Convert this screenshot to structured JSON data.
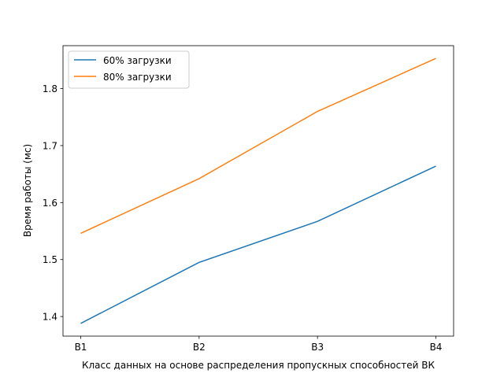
{
  "chart_data": {
    "type": "line",
    "categories": [
      "B1",
      "B2",
      "B3",
      "B4"
    ],
    "series": [
      {
        "name": "60% загрузки",
        "values": [
          1.388,
          1.495,
          1.567,
          1.664
        ],
        "color": "#1f77b4"
      },
      {
        "name": "80% загрузки",
        "values": [
          1.546,
          1.642,
          1.76,
          1.853
        ],
        "color": "#ff7f0e"
      }
    ],
    "title": "",
    "xlabel": "Класс данных на основе распределения пропускных способностей ВК",
    "ylabel": "Время работы (мс)",
    "ylim": [
      1.3656,
      1.8754
    ],
    "yticks": [
      "1.4",
      "1.5",
      "1.6",
      "1.7",
      "1.8"
    ],
    "grid": false,
    "legend_position": "top-left"
  }
}
